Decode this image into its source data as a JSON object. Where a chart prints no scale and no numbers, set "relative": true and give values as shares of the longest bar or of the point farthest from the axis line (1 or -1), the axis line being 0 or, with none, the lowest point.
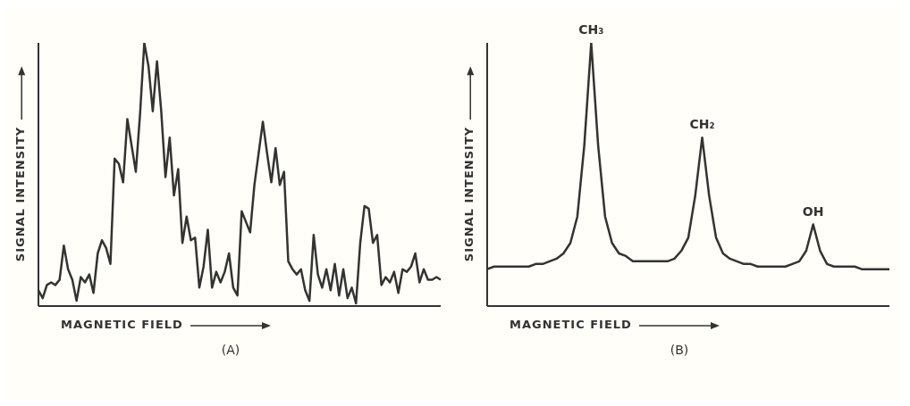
{
  "chart_data": [
    {
      "type": "line",
      "relative": true,
      "xlabel": "MAGNETIC FIELD",
      "ylabel": "SIGNAL INTENSITY",
      "subtitle": "(A)",
      "color": "#333333",
      "categories": [
        null,
        null,
        null,
        null,
        null,
        null,
        null,
        null,
        null,
        null,
        null,
        null,
        null,
        null,
        null,
        null,
        null,
        null,
        null,
        null,
        null,
        null,
        null,
        null,
        null,
        null,
        null,
        null,
        null,
        null,
        null,
        null,
        null,
        null,
        null,
        null,
        null,
        null,
        null,
        null,
        null,
        null,
        null,
        null,
        null,
        null,
        null,
        null,
        null,
        null,
        null,
        null,
        null,
        null,
        null,
        null,
        null,
        null,
        null,
        null,
        null,
        null,
        null,
        null,
        null,
        null,
        null,
        null,
        null,
        null,
        null,
        null,
        null,
        null,
        null,
        null,
        null,
        null,
        null,
        null,
        null,
        null,
        null,
        null,
        null,
        null,
        null,
        null,
        null,
        null,
        null,
        null,
        null,
        null,
        null,
        null
      ],
      "values": [
        0.06,
        0.03,
        0.08,
        0.09,
        0.08,
        0.1,
        0.23,
        0.14,
        0.1,
        0.02,
        0.11,
        0.09,
        0.12,
        0.05,
        0.2,
        0.25,
        0.22,
        0.16,
        0.56,
        0.54,
        0.47,
        0.71,
        0.61,
        0.51,
        0.73,
        1,
        0.91,
        0.74,
        0.93,
        0.74,
        0.49,
        0.64,
        0.42,
        0.52,
        0.24,
        0.34,
        0.25,
        0.26,
        0.07,
        0.15,
        0.29,
        0.07,
        0.13,
        0.09,
        0.13,
        0.2,
        0.07,
        0.04,
        0.36,
        0.32,
        0.28,
        0.46,
        0.58,
        0.7,
        0.58,
        0.47,
        0.6,
        0.46,
        0.51,
        0.17,
        0.14,
        0.12,
        0.14,
        0.06,
        0.02,
        0.27,
        0.12,
        0.07,
        0.14,
        0.06,
        0.16,
        0.04,
        0.14,
        0.03,
        0.07,
        0.01,
        0.24,
        0.38,
        0.37,
        0.24,
        0.27,
        0.08,
        0.11,
        0.09,
        0.13,
        0.05,
        0.14,
        0.13,
        0.15,
        0.2,
        0.09,
        0.14,
        0.1,
        0.1,
        0.11,
        0.1
      ]
    },
    {
      "type": "line",
      "relative": true,
      "xlabel": "MAGNETIC FIELD",
      "ylabel": "SIGNAL INTENSITY",
      "subtitle": "(B)",
      "color": "#333333",
      "annotations": [
        "CH₃",
        "CH₂",
        "OH"
      ],
      "categories": [
        null,
        null,
        null,
        null,
        null,
        null,
        null,
        null,
        null,
        null,
        null,
        null,
        null,
        null,
        null,
        null,
        null,
        null,
        null,
        null,
        null,
        null,
        null,
        null,
        null,
        null,
        null,
        null,
        null,
        null,
        null,
        null,
        null,
        null,
        null,
        null,
        null,
        null,
        null,
        null,
        null,
        null,
        null,
        null,
        null,
        null,
        null,
        null,
        null,
        null,
        null,
        null,
        null,
        null,
        null,
        null,
        null,
        null,
        null
      ],
      "values": [
        0.14,
        0.15,
        0.15,
        0.15,
        0.15,
        0.15,
        0.15,
        0.16,
        0.16,
        0.17,
        0.18,
        0.2,
        0.24,
        0.34,
        0.61,
        1,
        0.61,
        0.34,
        0.24,
        0.2,
        0.19,
        0.17,
        0.17,
        0.17,
        0.17,
        0.17,
        0.17,
        0.18,
        0.21,
        0.26,
        0.42,
        0.64,
        0.42,
        0.26,
        0.2,
        0.18,
        0.17,
        0.16,
        0.16,
        0.15,
        0.15,
        0.15,
        0.15,
        0.15,
        0.16,
        0.17,
        0.21,
        0.31,
        0.21,
        0.16,
        0.15,
        0.15,
        0.15,
        0.15,
        0.14,
        0.14,
        0.14,
        0.14,
        0.14
      ]
    }
  ]
}
